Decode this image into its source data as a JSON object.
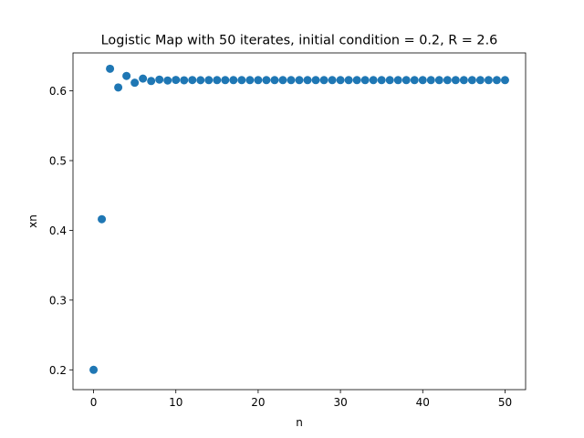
{
  "chart_data": {
    "type": "scatter",
    "title": "Logistic Map with 50 iterates, initial condition = 0.2, R = 2.6",
    "xlabel": "n",
    "ylabel": "xn",
    "xlim": [
      -2.5,
      52.5
    ],
    "ylim": [
      0.1716,
      0.6544
    ],
    "xticks": [
      0,
      10,
      20,
      30,
      40,
      50
    ],
    "yticks": [
      0.2,
      0.3,
      0.4,
      0.5,
      0.6
    ],
    "grid": false,
    "marker_color": "#1f77b4",
    "series": [
      {
        "x": [
          0,
          1,
          2,
          3,
          4,
          5,
          6,
          7,
          8,
          9,
          10,
          11,
          12,
          13,
          14,
          15,
          16,
          17,
          18,
          19,
          20,
          21,
          22,
          23,
          24,
          25,
          26,
          27,
          28,
          29,
          30,
          31,
          32,
          33,
          34,
          35,
          36,
          37,
          38,
          39,
          40,
          41,
          42,
          43,
          44,
          45,
          46,
          47,
          48,
          49,
          50
        ],
        "values": [
          0.2,
          0.416,
          0.6317,
          0.6049,
          0.6214,
          0.6117,
          0.6176,
          0.6141,
          0.6162,
          0.6149,
          0.6157,
          0.6152,
          0.6155,
          0.6153,
          0.6154,
          0.6154,
          0.6154,
          0.6154,
          0.6154,
          0.6154,
          0.6154,
          0.6154,
          0.6154,
          0.6154,
          0.6154,
          0.6154,
          0.6154,
          0.6154,
          0.6154,
          0.6154,
          0.6154,
          0.6154,
          0.6154,
          0.6154,
          0.6154,
          0.6154,
          0.6154,
          0.6154,
          0.6154,
          0.6154,
          0.6154,
          0.6154,
          0.6154,
          0.6154,
          0.6154,
          0.6154,
          0.6154,
          0.6154,
          0.6154,
          0.6154,
          0.6154
        ]
      }
    ]
  }
}
